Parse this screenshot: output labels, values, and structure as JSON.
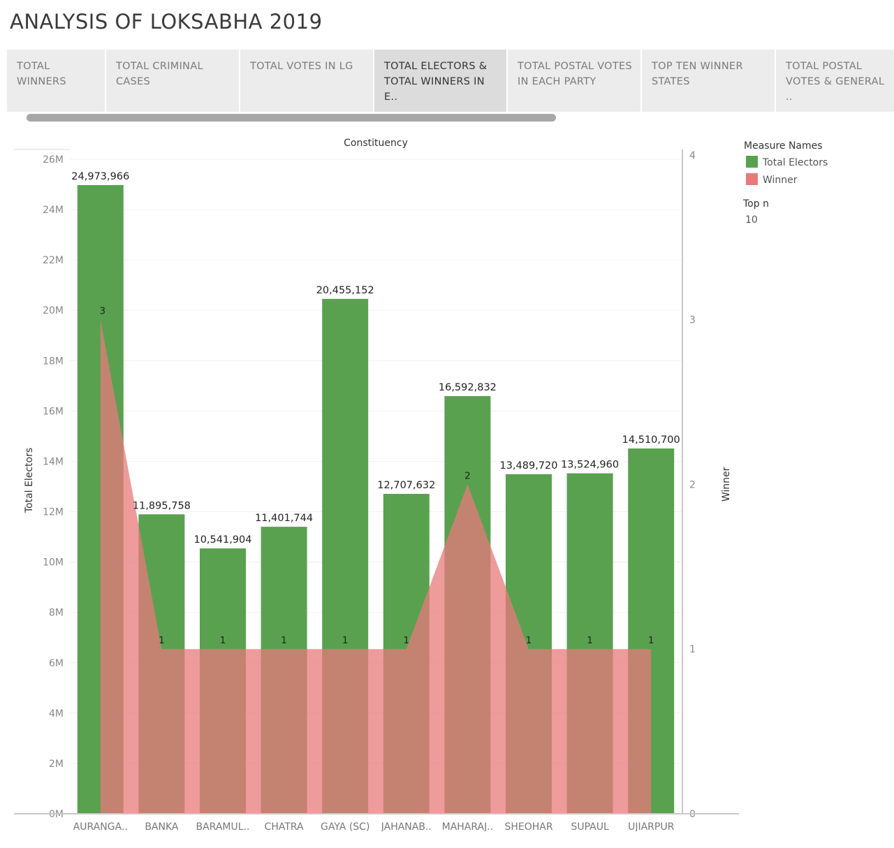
{
  "page": {
    "title": "ANALYSIS OF LOKSABHA 2019"
  },
  "tabs": [
    {
      "label": "TOTAL WINNERS",
      "active": false
    },
    {
      "label": "TOTAL CRIMINAL\nCASES",
      "active": false
    },
    {
      "label": "TOTAL  VOTES IN LG",
      "active": false
    },
    {
      "label": "TOTAL ELECTORS &\nTOTAL WINNERS IN E..",
      "active": true
    },
    {
      "label": "TOTAL POSTAL VOTES\nIN EACH PARTY",
      "active": false
    },
    {
      "label": "TOP  TEN WINNER\nSTATES",
      "active": false
    },
    {
      "label": "TOTAL POSTAL\nVOTES & GENERAL ..",
      "active": false
    }
  ],
  "legend": {
    "title": "Measure Names",
    "items": [
      {
        "label": "Total Electors",
        "color": "#59a14f"
      },
      {
        "label": "Winner",
        "color": "#e8797b"
      }
    ]
  },
  "filter": {
    "title": "Top n",
    "value": "10"
  },
  "chart_data": {
    "type": "bar",
    "header": "Constituency",
    "categories": [
      "AURANGA..",
      "BANKA",
      "BARAMUL..",
      "CHATRA",
      "GAYA (SC)",
      "JAHANAB..",
      "MAHARAJ..",
      "SHEOHAR",
      "SUPAUL",
      "UJIARPUR"
    ],
    "series": [
      {
        "name": "Total Electors",
        "type": "bar",
        "axis": "left",
        "color": "#59a14f",
        "values": [
          24973966,
          11895758,
          10541904,
          11401744,
          20455152,
          12707632,
          16592832,
          13489720,
          13524960,
          14510700
        ],
        "labels": [
          "24,973,966",
          "11,895,758",
          "10,541,904",
          "11,401,744",
          "20,455,152",
          "12,707,632",
          "16,592,832",
          "13,489,720",
          "13,524,960",
          "14,510,700"
        ]
      },
      {
        "name": "Winner",
        "type": "area",
        "axis": "right",
        "color": "#e8797b",
        "values": [
          3,
          1,
          1,
          1,
          1,
          1,
          2,
          1,
          1,
          1
        ],
        "labels": [
          "3",
          "1",
          "1",
          "1",
          "1",
          "1",
          "2",
          "1",
          "1",
          "1"
        ]
      }
    ],
    "ylabel": "Total Electors",
    "y2label": "Winner",
    "ylim": [
      0,
      26500000
    ],
    "y2lim": [
      0,
      4.05
    ],
    "yticks": [
      "0M",
      "2M",
      "4M",
      "6M",
      "8M",
      "10M",
      "12M",
      "14M",
      "16M",
      "18M",
      "20M",
      "22M",
      "24M",
      "26M"
    ],
    "y2ticks": [
      "0",
      "1",
      "2",
      "3",
      "4"
    ],
    "grid": true
  }
}
